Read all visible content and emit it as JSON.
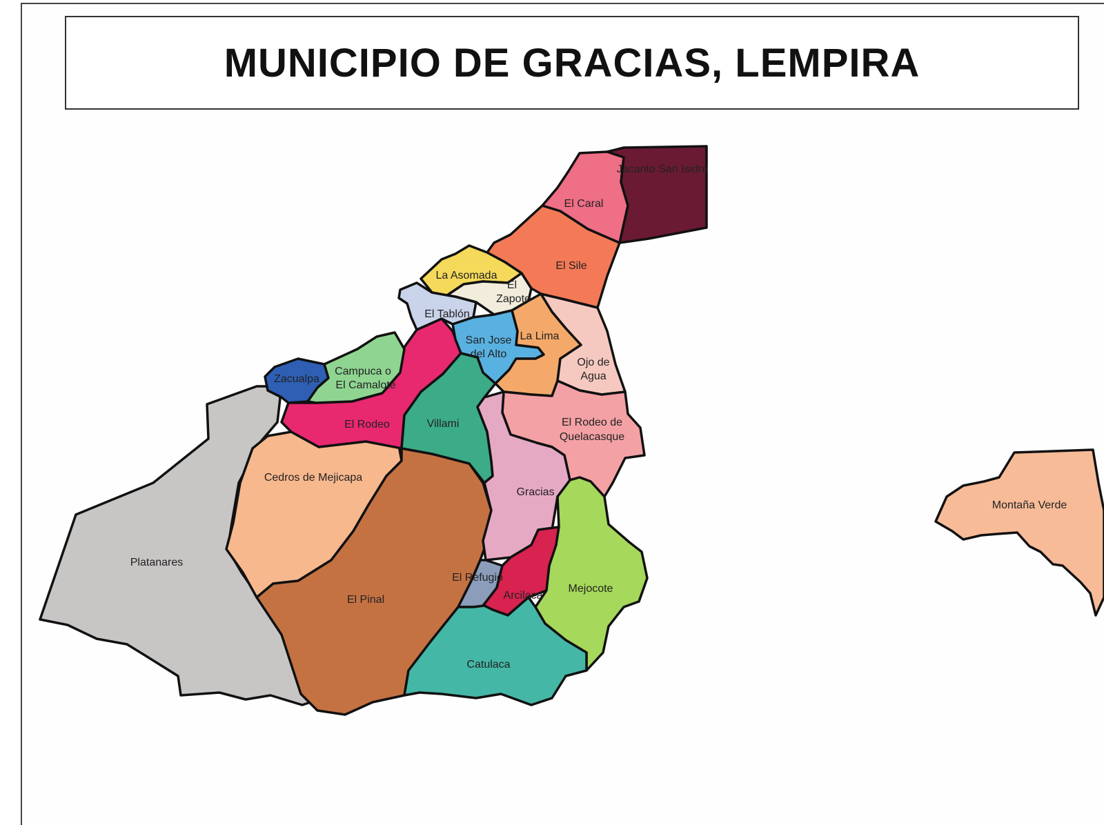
{
  "title": "MUNICIPIO DE GRACIAS, LEMPIRA",
  "regions": {
    "jacanto_san_isidro": {
      "label": "Jacanto San Isidro",
      "color": "#6b1a33"
    },
    "el_caral": {
      "label": "El Caral",
      "color": "#ef6f86"
    },
    "el_sile": {
      "label": "El Sile",
      "color": "#f47a57"
    },
    "la_asomada": {
      "label": "La Asomada",
      "color": "#f5d95a"
    },
    "el_zapote": {
      "label_line1": "El",
      "label_line2": "Zapote",
      "color": "#f1ecdc"
    },
    "el_tablon": {
      "label": "El Tablón",
      "color": "#c9d3ea"
    },
    "la_lima": {
      "label": "La Lima",
      "color": "#f4a96a"
    },
    "san_jose_del_alto": {
      "label_line1": "San Jose",
      "label_line2": "del Alto",
      "color": "#58b1e0"
    },
    "ojo_de_agua": {
      "label_line1": "Ojo de",
      "label_line2": "Agua",
      "color": "#f6c9c0"
    },
    "zacualpa": {
      "label": "Zacualpa",
      "color": "#2e5fb4"
    },
    "campuca": {
      "label_line1": "Campuca o",
      "label_line2": "El Camalote",
      "color": "#8fd591"
    },
    "el_rodeo": {
      "label": "El Rodeo",
      "color": "#e8286f"
    },
    "villami": {
      "label": "Villami",
      "color": "#3cab88"
    },
    "el_rodeo_de_quelacasque": {
      "label_line1": "El Rodeo de",
      "label_line2": "Quelacasque",
      "color": "#f3a1a5"
    },
    "cedros_de_mejicapa": {
      "label": "Cedros de Mejicapa",
      "color": "#f7b88e"
    },
    "platanares": {
      "label": "Platanares",
      "color": "#c8c5c5"
    },
    "el_pinal": {
      "label": "El Pinal",
      "color": "#c57243"
    },
    "gracias": {
      "label": "Gracias",
      "color": "#e6a9c4"
    },
    "el_refugio": {
      "label": "El Refugio",
      "color": "#8b9dbb"
    },
    "arcilaca": {
      "label": "Arcilaca",
      "color": "#d8224f"
    },
    "mejocote": {
      "label": "Mejocote",
      "color": "#a6d85b"
    },
    "catulaca": {
      "label": "Catulaca",
      "color": "#45b7a6"
    },
    "montana_verde": {
      "label": "Montaña Verde",
      "color": "#f7bb98"
    }
  }
}
